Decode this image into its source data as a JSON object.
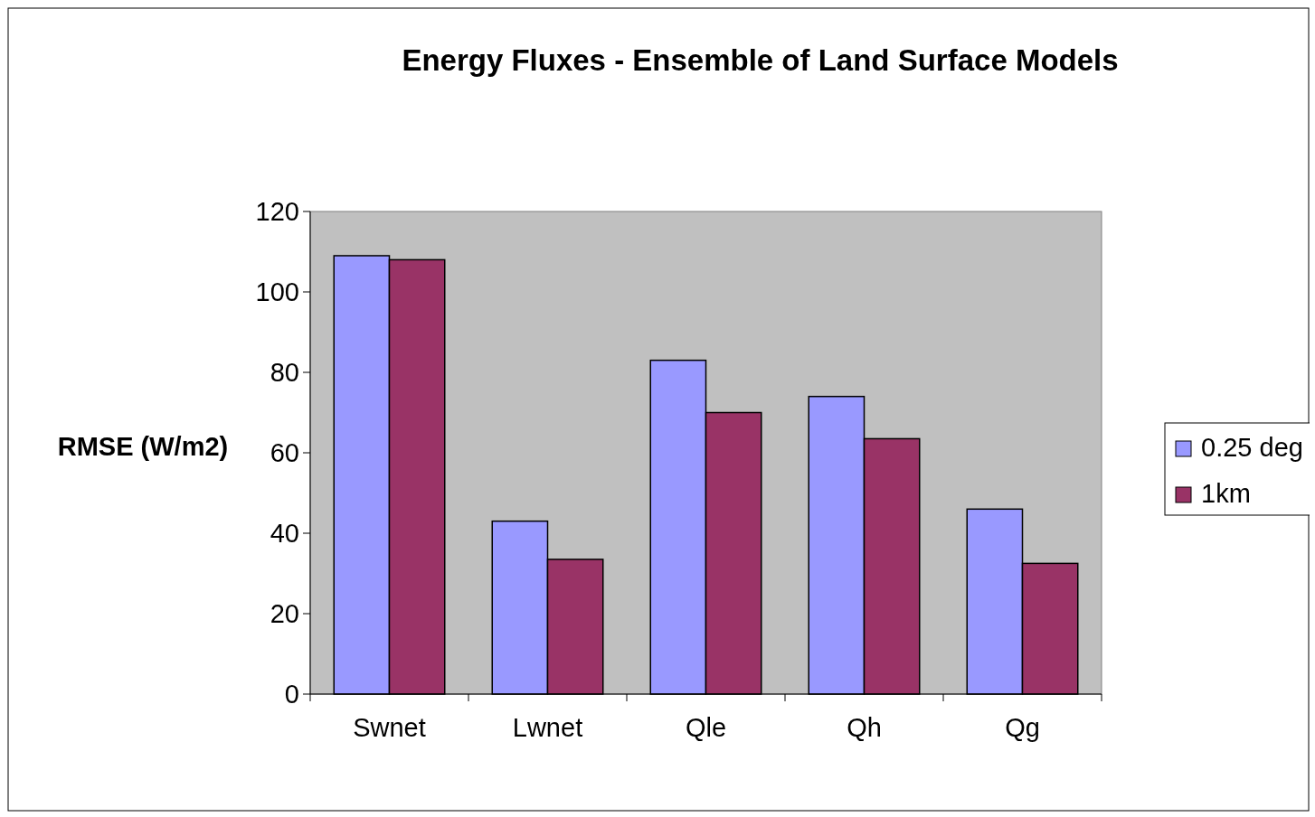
{
  "chart_data": {
    "type": "bar",
    "title": "Energy Fluxes - Ensemble of Land Surface Models",
    "ylabel": "RMSE (W/m2)",
    "categories": [
      "Swnet",
      "Lwnet",
      "Qle",
      "Qh",
      "Qg"
    ],
    "series": [
      {
        "name": "0.25 deg",
        "color": "#9999ff",
        "values": [
          109,
          43,
          83,
          74,
          46
        ]
      },
      {
        "name": "1km",
        "color": "#993366",
        "values": [
          108,
          33.5,
          70,
          63.5,
          32.5
        ]
      }
    ],
    "ylim": [
      0,
      120
    ],
    "yticks": [
      0,
      20,
      40,
      60,
      80,
      100,
      120
    ],
    "grid": false,
    "legend": "right"
  }
}
